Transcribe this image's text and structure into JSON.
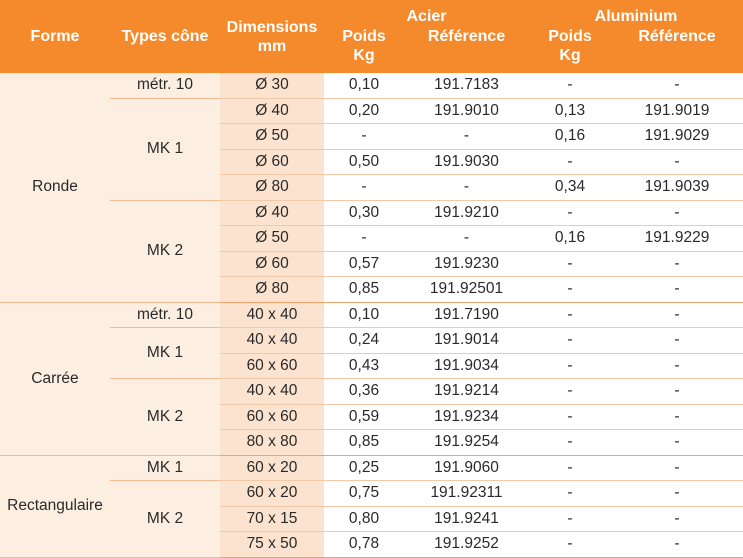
{
  "header": {
    "forme": "Forme",
    "types_cone": "Types cône",
    "dimensions": "Dimensions",
    "dimensions_unit": "mm",
    "acier": "Acier",
    "aluminium": "Aluminium",
    "poids": "Poids",
    "poids_unit": "Kg",
    "reference": "Référence"
  },
  "colors": {
    "header_bg": "#f58a2d",
    "shaded_bg": "#fdeee2",
    "dim_bg": "#fbe3cf"
  },
  "groups": [
    {
      "forme": "Ronde",
      "types": [
        {
          "type": "métr. 10",
          "rows": [
            {
              "dim": "Ø 30",
              "a_poids": "0,10",
              "a_ref": "191.7183",
              "l_poids": "-",
              "l_ref": "-"
            }
          ]
        },
        {
          "type": "MK 1",
          "rows": [
            {
              "dim": "Ø 40",
              "a_poids": "0,20",
              "a_ref": "191.9010",
              "l_poids": "0,13",
              "l_ref": "191.9019"
            },
            {
              "dim": "Ø 50",
              "a_poids": "-",
              "a_ref": "-",
              "l_poids": "0,16",
              "l_ref": "191.9029"
            },
            {
              "dim": "Ø 60",
              "a_poids": "0,50",
              "a_ref": "191.9030",
              "l_poids": "-",
              "l_ref": "-"
            },
            {
              "dim": "Ø 80",
              "a_poids": "-",
              "a_ref": "-",
              "l_poids": "0,34",
              "l_ref": "191.9039"
            }
          ]
        },
        {
          "type": "MK 2",
          "rows": [
            {
              "dim": "Ø 40",
              "a_poids": "0,30",
              "a_ref": "191.9210",
              "l_poids": "-",
              "l_ref": "-"
            },
            {
              "dim": "Ø 50",
              "a_poids": "-",
              "a_ref": "-",
              "l_poids": "0,16",
              "l_ref": "191.9229"
            },
            {
              "dim": "Ø 60",
              "a_poids": "0,57",
              "a_ref": "191.9230",
              "l_poids": "-",
              "l_ref": "-"
            },
            {
              "dim": "Ø 80",
              "a_poids": "0,85",
              "a_ref": "191.92501",
              "l_poids": "-",
              "l_ref": "-"
            }
          ]
        }
      ]
    },
    {
      "forme": "Carrée",
      "types": [
        {
          "type": "métr. 10",
          "rows": [
            {
              "dim": "40 x 40",
              "a_poids": "0,10",
              "a_ref": "191.7190",
              "l_poids": "-",
              "l_ref": "-"
            }
          ]
        },
        {
          "type": "MK 1",
          "rows": [
            {
              "dim": "40 x 40",
              "a_poids": "0,24",
              "a_ref": "191.9014",
              "l_poids": "-",
              "l_ref": "-"
            },
            {
              "dim": "60 x 60",
              "a_poids": "0,43",
              "a_ref": "191.9034",
              "l_poids": "-",
              "l_ref": "-"
            }
          ]
        },
        {
          "type": "MK 2",
          "rows": [
            {
              "dim": "40 x 40",
              "a_poids": "0,36",
              "a_ref": "191.9214",
              "l_poids": "-",
              "l_ref": "-"
            },
            {
              "dim": "60 x 60",
              "a_poids": "0,59",
              "a_ref": "191.9234",
              "l_poids": "-",
              "l_ref": "-"
            },
            {
              "dim": "80 x 80",
              "a_poids": "0,85",
              "a_ref": "191.9254",
              "l_poids": "-",
              "l_ref": "-"
            }
          ]
        }
      ]
    },
    {
      "forme": "Rectangulaire",
      "types": [
        {
          "type": "MK 1",
          "rows": [
            {
              "dim": "60 x 20",
              "a_poids": "0,25",
              "a_ref": "191.9060",
              "l_poids": "-",
              "l_ref": "-"
            }
          ]
        },
        {
          "type": "MK 2",
          "rows": [
            {
              "dim": "60 x 20",
              "a_poids": "0,75",
              "a_ref": "191.92311",
              "l_poids": "-",
              "l_ref": "-"
            },
            {
              "dim": "70 x 15",
              "a_poids": "0,80",
              "a_ref": "191.9241",
              "l_poids": "-",
              "l_ref": "-"
            },
            {
              "dim": "75 x 50",
              "a_poids": "0,78",
              "a_ref": "191.9252",
              "l_poids": "-",
              "l_ref": "-"
            }
          ]
        }
      ]
    }
  ]
}
